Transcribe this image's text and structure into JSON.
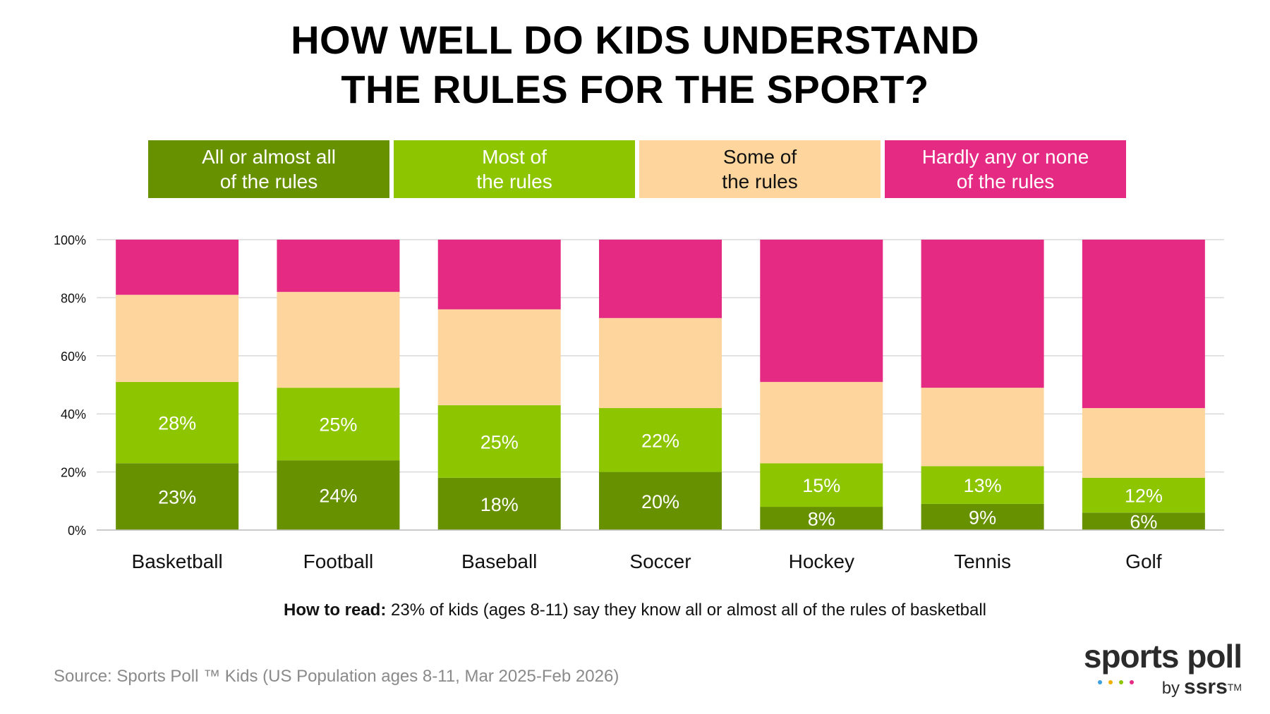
{
  "title": {
    "line1": "HOW WELL DO KIDS UNDERSTAND",
    "line2": "THE RULES FOR THE SPORT?"
  },
  "legend": [
    {
      "line1": "All or almost all",
      "line2": "of the rules",
      "color": "#689100",
      "text_color": "#ffffff"
    },
    {
      "line1": "Most of",
      "line2": "the rules",
      "color": "#8dc600",
      "text_color": "#ffffff"
    },
    {
      "line1": "Some of",
      "line2": "the rules",
      "color": "#fdd59d",
      "text_color": "#111111"
    },
    {
      "line1": "Hardly any or none",
      "line2": "of the rules",
      "color": "#e52a83",
      "text_color": "#ffffff"
    }
  ],
  "chart_data": {
    "type": "bar",
    "stacked": true,
    "categories": [
      "Basketball",
      "Football",
      "Baseball",
      "Soccer",
      "Hockey",
      "Tennis",
      "Golf"
    ],
    "series": [
      {
        "name": "All or almost all of the rules",
        "color": "#689100",
        "values": [
          23,
          24,
          18,
          20,
          8,
          9,
          6
        ],
        "labels": [
          "23%",
          "24%",
          "18%",
          "20%",
          "8%",
          "9%",
          "6%"
        ]
      },
      {
        "name": "Most of the rules",
        "color": "#8dc600",
        "values": [
          28,
          25,
          25,
          22,
          15,
          13,
          12
        ],
        "labels": [
          "28%",
          "25%",
          "25%",
          "22%",
          "15%",
          "13%",
          "12%"
        ]
      },
      {
        "name": "Some of the rules",
        "color": "#fdd59d",
        "values": [
          30,
          33,
          33,
          31,
          28,
          27,
          24
        ]
      },
      {
        "name": "Hardly any or none of the rules",
        "color": "#e52a83",
        "values": [
          19,
          18,
          24,
          27,
          49,
          51,
          58
        ]
      }
    ],
    "y_ticks": [
      "0%",
      "20%",
      "40%",
      "60%",
      "80%",
      "100%"
    ],
    "ylim": [
      0,
      100
    ],
    "grid": true
  },
  "how_to_read": {
    "label": "How to read:",
    "text": "23% of kids (ages 8-11) say they know all or almost all of the rules of basketball"
  },
  "source": "Source: Sports Poll ™ Kids (US Population ages 8-11, Mar 2025-Feb 2026)",
  "logo": {
    "main": "sports poll",
    "by": "by",
    "brand": "ssrs",
    "tm": "TM",
    "dot_colors": [
      "#3aa0e0",
      "#f0b000",
      "#8dc600",
      "#e52a83"
    ]
  }
}
